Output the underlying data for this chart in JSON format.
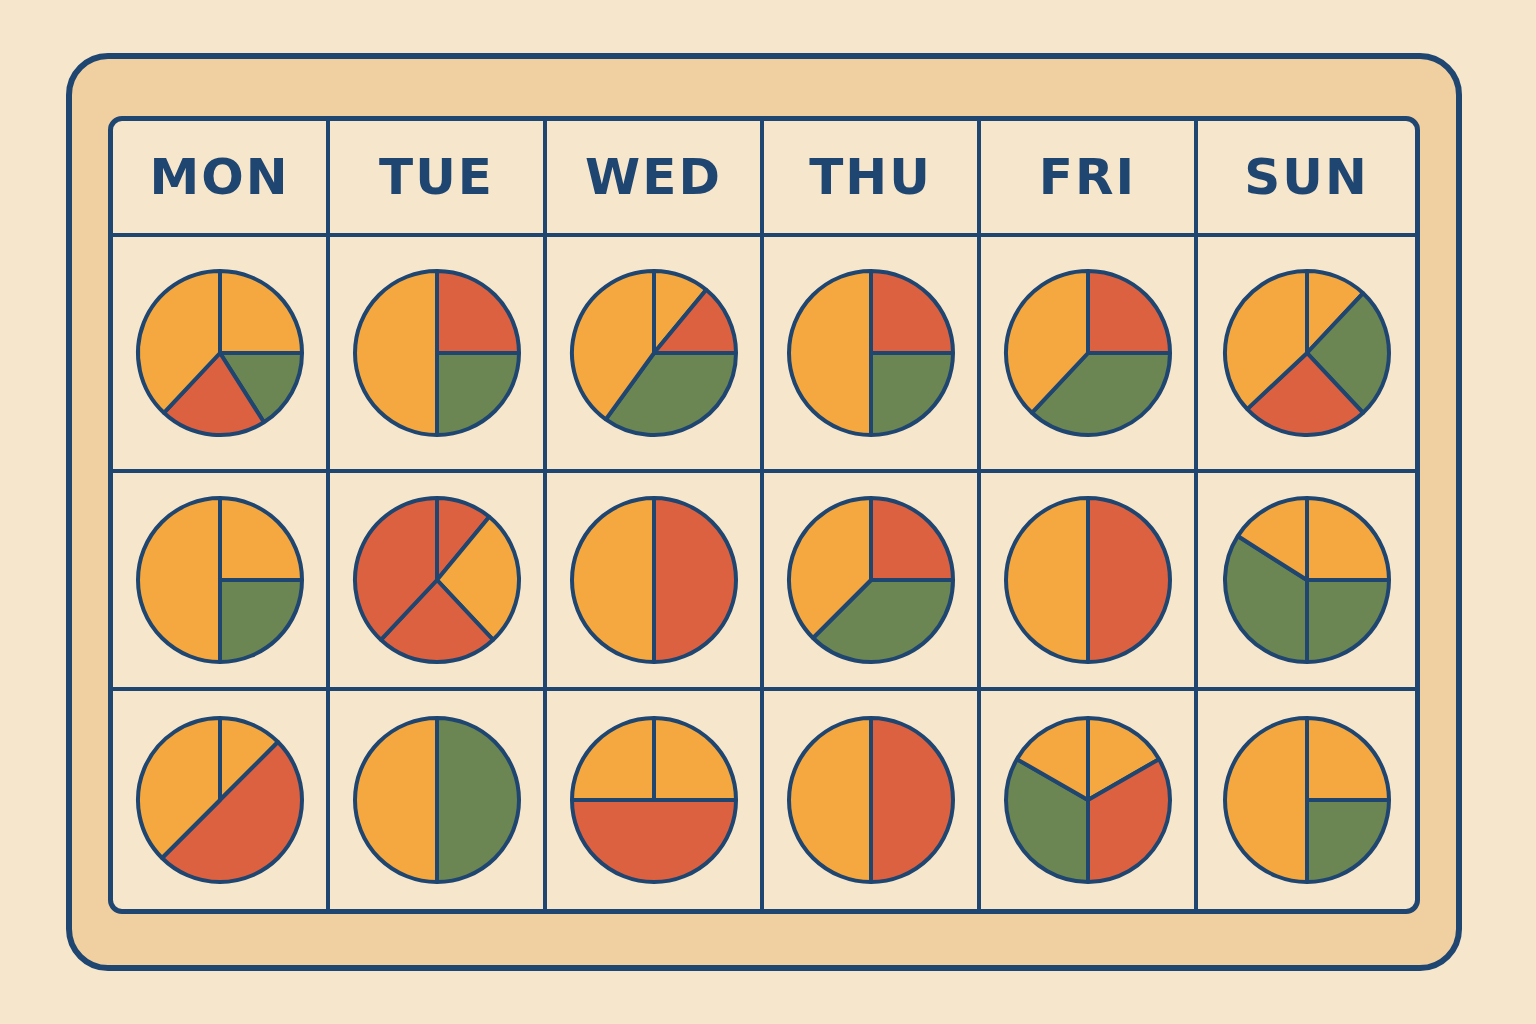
{
  "chart_data": [
    {
      "type": "pie",
      "title": "MON",
      "categories": [
        null,
        null,
        null,
        null
      ],
      "values": [
        25,
        16,
        21,
        38
      ],
      "colors": [
        "#f4a83f",
        "#6b8553",
        "#dc6140",
        "#f4a83f"
      ]
    },
    {
      "type": "pie",
      "title": "TUE",
      "categories": [
        null,
        null,
        null
      ],
      "values": [
        25,
        25,
        50
      ],
      "colors": [
        "#dc6140",
        "#6b8553",
        "#f4a83f"
      ]
    },
    {
      "type": "pie",
      "title": "WED",
      "categories": [
        null,
        null,
        null,
        null
      ],
      "values": [
        11,
        14,
        35,
        40
      ],
      "colors": [
        "#f4a83f",
        "#dc6140",
        "#6b8553",
        "#f4a83f"
      ]
    },
    {
      "type": "pie",
      "title": "THU",
      "categories": [
        null,
        null,
        null
      ],
      "values": [
        25,
        25,
        50
      ],
      "colors": [
        "#dc6140",
        "#6b8553",
        "#f4a83f"
      ]
    },
    {
      "type": "pie",
      "title": "FRI",
      "categories": [
        null,
        null,
        null
      ],
      "values": [
        25,
        37,
        38
      ],
      "colors": [
        "#dc6140",
        "#6b8553",
        "#f4a83f"
      ]
    },
    {
      "type": "pie",
      "title": "SUN",
      "categories": [
        null,
        null,
        null,
        null
      ],
      "values": [
        12,
        26,
        25,
        37
      ],
      "colors": [
        "#f4a83f",
        "#6b8553",
        "#dc6140",
        "#f4a83f"
      ]
    },
    {
      "type": "pie",
      "categories": [
        null,
        null,
        null
      ],
      "values": [
        25,
        25,
        50
      ],
      "colors": [
        "#f4a83f",
        "#6b8553",
        "#f4a83f"
      ]
    },
    {
      "type": "pie",
      "categories": [
        null,
        null,
        null,
        null
      ],
      "values": [
        11,
        27,
        24,
        38
      ],
      "colors": [
        "#dc6140",
        "#f4a83f",
        "#dc6140",
        "#dc6140"
      ]
    },
    {
      "type": "pie",
      "categories": [
        null,
        null
      ],
      "values": [
        50,
        50
      ],
      "colors": [
        "#dc6140",
        "#f4a83f"
      ]
    },
    {
      "type": "pie",
      "categories": [
        null,
        null,
        null
      ],
      "values": [
        25,
        37.5,
        37.5
      ],
      "colors": [
        "#dc6140",
        "#6b8553",
        "#f4a83f"
      ]
    },
    {
      "type": "pie",
      "categories": [
        null,
        null
      ],
      "values": [
        50,
        50
      ],
      "colors": [
        "#dc6140",
        "#f4a83f"
      ]
    },
    {
      "type": "pie",
      "categories": [
        null,
        null,
        null,
        null
      ],
      "values": [
        25,
        25,
        34,
        16
      ],
      "colors": [
        "#f4a83f",
        "#6b8553",
        "#6b8553",
        "#f4a83f"
      ]
    },
    {
      "type": "pie",
      "categories": [
        null,
        null,
        null
      ],
      "values": [
        12.5,
        50,
        37.5
      ],
      "colors": [
        "#f4a83f",
        "#dc6140",
        "#f4a83f"
      ]
    },
    {
      "type": "pie",
      "categories": [
        null,
        null
      ],
      "values": [
        50,
        50
      ],
      "colors": [
        "#6b8553",
        "#f4a83f"
      ]
    },
    {
      "type": "pie",
      "categories": [
        null,
        null,
        null
      ],
      "values": [
        25,
        50,
        25
      ],
      "colors": [
        "#f4a83f",
        "#dc6140",
        "#f4a83f"
      ]
    },
    {
      "type": "pie",
      "categories": [
        null,
        null
      ],
      "values": [
        50,
        50
      ],
      "colors": [
        "#dc6140",
        "#f4a83f"
      ]
    },
    {
      "type": "pie",
      "categories": [
        null,
        null,
        null,
        null
      ],
      "values": [
        16.7,
        33.3,
        33.3,
        16.7
      ],
      "colors": [
        "#f4a83f",
        "#dc6140",
        "#6b8553",
        "#f4a83f"
      ]
    },
    {
      "type": "pie",
      "categories": [
        null,
        null,
        null
      ],
      "values": [
        25,
        25,
        50
      ],
      "colors": [
        "#f4a83f",
        "#6b8553",
        "#f4a83f"
      ]
    }
  ]
}
